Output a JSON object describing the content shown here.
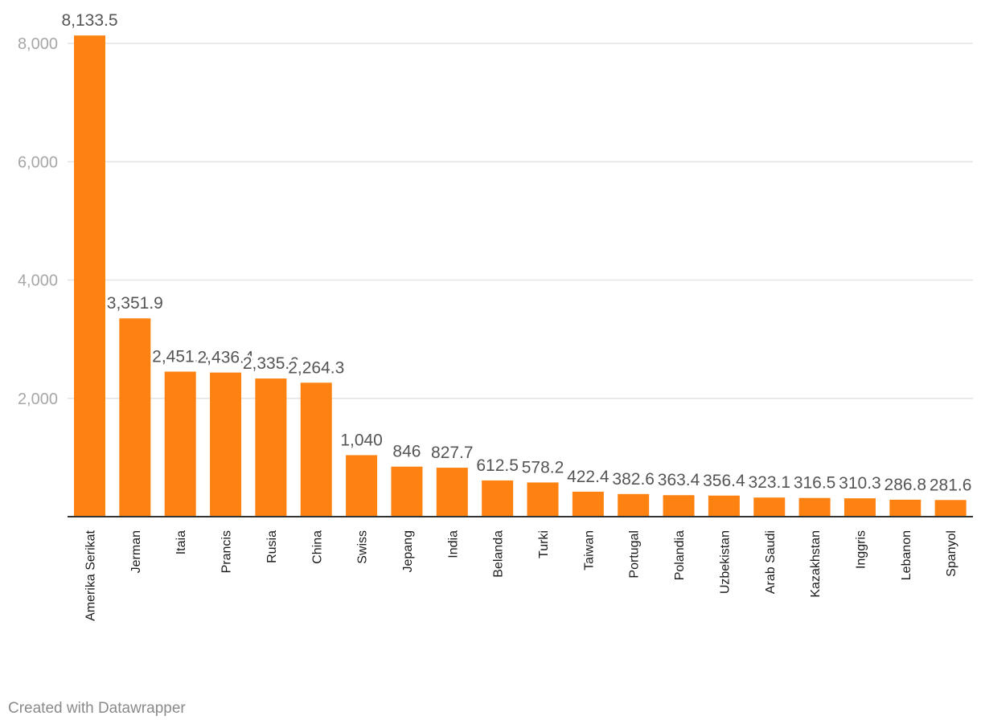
{
  "chart_data": {
    "type": "bar",
    "title": "",
    "xlabel": "",
    "ylabel": "",
    "ylim": [
      0,
      8000
    ],
    "yticks": [
      2000,
      4000,
      6000,
      8000
    ],
    "ytick_labels": [
      "2,000",
      "4,000",
      "6,000",
      "8,000"
    ],
    "grid": true,
    "bar_color": "#fd8212",
    "categories": [
      "Amerika Serikat",
      "Jerman",
      "Itaia",
      "Prancis",
      "Rusia",
      "China",
      "Swiss",
      "Jepang",
      "India",
      "Belanda",
      "Turki",
      "Taiwan",
      "Portugal",
      "Polandia",
      "Uzbekistan",
      "Arab Saudi",
      "Kazakhstan",
      "Inggris",
      "Lebanon",
      "Spanyol"
    ],
    "values": [
      8133.5,
      3351.9,
      2451.8,
      2436.4,
      2335.6,
      2264.3,
      1040,
      846,
      827.7,
      612.5,
      578.2,
      422.4,
      382.6,
      363.4,
      356.4,
      323.1,
      316.5,
      310.3,
      286.8,
      281.6
    ],
    "value_labels": [
      "8,133.5",
      "3,351.9",
      "2,451.8",
      "2,436.4",
      "2,335.6",
      "2,264.3",
      "1,040",
      "846",
      "827.7",
      "612.5",
      "578.2",
      "422.4",
      "382.6",
      "363.4",
      "356.4",
      "323.1",
      "316.5",
      "310.3",
      "286.8",
      "281.6"
    ]
  },
  "footer": {
    "credit": "Created with Datawrapper"
  }
}
